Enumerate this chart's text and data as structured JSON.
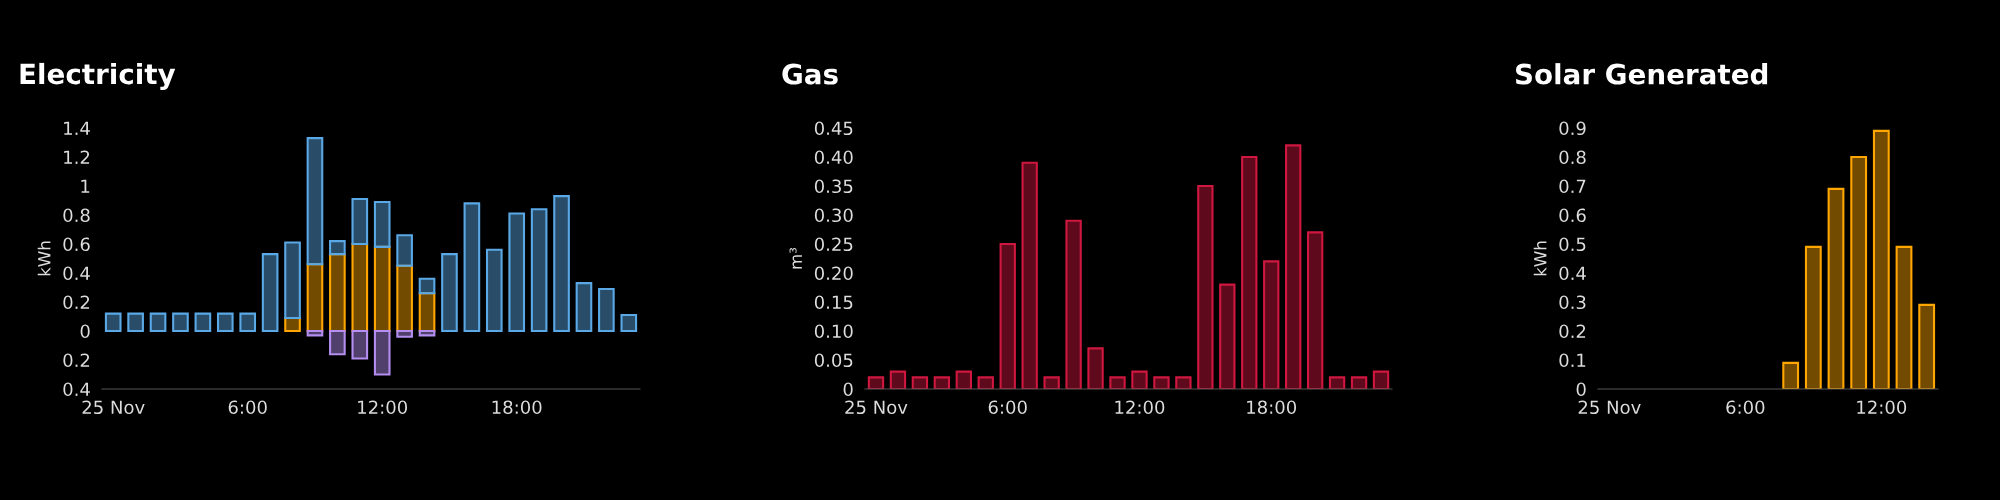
{
  "chart_data": [
    {
      "type": "bar",
      "title": "Electricity",
      "ylabel": "kWh",
      "stacked": true,
      "x": [
        0,
        1,
        2,
        3,
        4,
        5,
        6,
        7,
        8,
        9,
        10,
        11,
        12,
        13,
        14,
        15,
        16,
        17,
        18,
        19,
        20,
        21,
        22,
        23
      ],
      "series": [
        {
          "color": "#ffa600",
          "values": [
            null,
            null,
            null,
            null,
            null,
            null,
            null,
            null,
            0.09,
            0.46,
            0.53,
            0.6,
            0.58,
            0.45,
            0.26,
            null,
            null,
            null,
            null,
            null,
            null,
            null,
            null,
            null
          ]
        },
        {
          "color": "#5aa9e6",
          "values": [
            0.12,
            0.12,
            0.12,
            0.12,
            0.12,
            0.12,
            0.12,
            0.53,
            0.52,
            0.87,
            0.09,
            0.31,
            0.31,
            0.21,
            0.1,
            0.53,
            0.88,
            0.56,
            0.81,
            0.84,
            0.93,
            0.33,
            0.29,
            0.11
          ]
        },
        {
          "color": "#b48ef0",
          "values": [
            null,
            null,
            null,
            null,
            null,
            null,
            null,
            null,
            null,
            -0.03,
            -0.16,
            -0.19,
            -0.3,
            -0.04,
            -0.03,
            null,
            null,
            null,
            null,
            null,
            null,
            null,
            null,
            null
          ]
        }
      ],
      "xlim": [
        -0.5,
        23.5
      ],
      "xticks": [
        {
          "value": 0,
          "label": "25 Nov"
        },
        {
          "value": 6,
          "label": "6:00"
        },
        {
          "value": 12,
          "label": "12:00"
        },
        {
          "value": 18,
          "label": "18:00"
        }
      ],
      "ylim": [
        -0.4,
        1.4
      ],
      "yticks": [
        {
          "value": -0.4,
          "label": "0.4"
        },
        {
          "value": -0.2,
          "label": "0.2"
        },
        0,
        0.2,
        0.4,
        0.6,
        0.8,
        1,
        1.2,
        1.4
      ],
      "grid": false,
      "legend": false
    },
    {
      "type": "bar",
      "title": "Gas",
      "ylabel": "m³",
      "x": [
        0,
        1,
        2,
        3,
        4,
        5,
        6,
        7,
        8,
        9,
        10,
        11,
        12,
        13,
        14,
        15,
        16,
        17,
        18,
        19,
        20,
        21,
        22,
        23
      ],
      "series": [
        {
          "color": "#d0173f",
          "values": [
            0.02,
            0.03,
            0.02,
            0.02,
            0.03,
            0.02,
            0.25,
            0.39,
            0.02,
            0.29,
            0.07,
            0.02,
            0.03,
            0.02,
            0.02,
            0.35,
            0.18,
            0.4,
            0.22,
            0.42,
            0.27,
            0.02,
            0.02,
            0.03
          ]
        }
      ],
      "xlim": [
        -0.5,
        23.5
      ],
      "xticks": [
        {
          "value": 0,
          "label": "25 Nov"
        },
        {
          "value": 6,
          "label": "6:00"
        },
        {
          "value": 12,
          "label": "12:00"
        },
        {
          "value": 18,
          "label": "18:00"
        }
      ],
      "ylim": [
        0,
        0.45
      ],
      "yticks": [
        {
          "value": 0,
          "label": "0"
        },
        {
          "value": 0.05,
          "label": "0.05"
        },
        {
          "value": 0.1,
          "label": "0.10"
        },
        {
          "value": 0.15,
          "label": "0.15"
        },
        {
          "value": 0.2,
          "label": "0.20"
        },
        {
          "value": 0.25,
          "label": "0.25"
        },
        {
          "value": 0.3,
          "label": "0.30"
        },
        {
          "value": 0.35,
          "label": "0.35"
        },
        {
          "value": 0.4,
          "label": "0.40"
        },
        0.45
      ],
      "grid": false,
      "legend": false
    },
    {
      "type": "bar",
      "title": "Solar Generated",
      "ylabel": "kWh",
      "x": [
        8,
        9,
        10,
        11,
        12,
        13,
        14
      ],
      "series": [
        {
          "color": "#ffa600",
          "values": [
            0.09,
            0.49,
            0.69,
            0.8,
            0.89,
            0.49,
            0.29
          ]
        }
      ],
      "xlim": [
        -0.5,
        14.5
      ],
      "xticks": [
        {
          "value": 0,
          "label": "25 Nov"
        },
        {
          "value": 6,
          "label": "6:00"
        },
        {
          "value": 12,
          "label": "12:00"
        }
      ],
      "ylim": [
        0,
        0.9
      ],
      "yticks": [
        0,
        0.1,
        0.2,
        0.3,
        0.4,
        0.5,
        0.6,
        0.7,
        0.8,
        0.9
      ],
      "grid": false,
      "legend": false
    }
  ]
}
